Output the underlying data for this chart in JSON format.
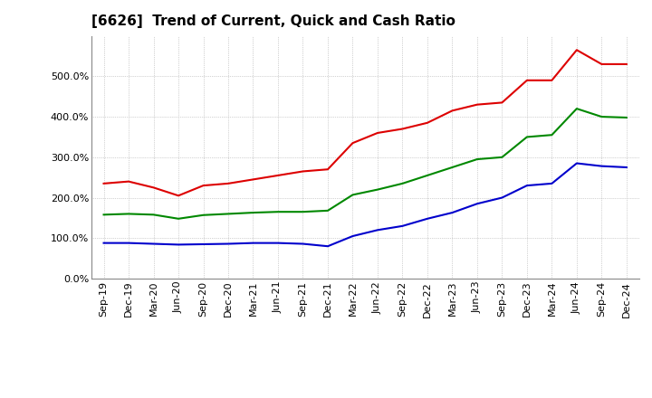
{
  "title": "[6626]  Trend of Current, Quick and Cash Ratio",
  "labels": [
    "Sep-19",
    "Dec-19",
    "Mar-20",
    "Jun-20",
    "Sep-20",
    "Dec-20",
    "Mar-21",
    "Jun-21",
    "Sep-21",
    "Dec-21",
    "Mar-22",
    "Jun-22",
    "Sep-22",
    "Dec-22",
    "Mar-23",
    "Jun-23",
    "Sep-23",
    "Dec-23",
    "Mar-24",
    "Jun-24",
    "Sep-24",
    "Dec-24"
  ],
  "current_ratio": [
    235,
    240,
    225,
    205,
    230,
    235,
    245,
    255,
    265,
    270,
    335,
    360,
    370,
    385,
    415,
    430,
    435,
    490,
    490,
    565,
    530,
    530
  ],
  "quick_ratio": [
    158,
    160,
    158,
    148,
    157,
    160,
    163,
    165,
    165,
    168,
    207,
    220,
    235,
    255,
    275,
    295,
    300,
    350,
    355,
    420,
    400,
    398
  ],
  "cash_ratio": [
    88,
    88,
    86,
    84,
    85,
    86,
    88,
    88,
    86,
    80,
    105,
    120,
    130,
    148,
    163,
    185,
    200,
    230,
    235,
    285,
    278,
    275
  ],
  "ylim": [
    0,
    600
  ],
  "yticks": [
    0,
    100,
    200,
    300,
    400,
    500
  ],
  "ytick_labels": [
    "0.0%",
    "100.0%",
    "200.0%",
    "300.0%",
    "400.0%",
    "500.0%"
  ],
  "current_color": "#dd0000",
  "quick_color": "#008800",
  "cash_color": "#0000cc",
  "background_color": "#ffffff",
  "grid_color": "#aaaaaa",
  "line_width": 1.5,
  "title_fontsize": 11,
  "tick_fontsize": 8,
  "legend_fontsize": 9
}
